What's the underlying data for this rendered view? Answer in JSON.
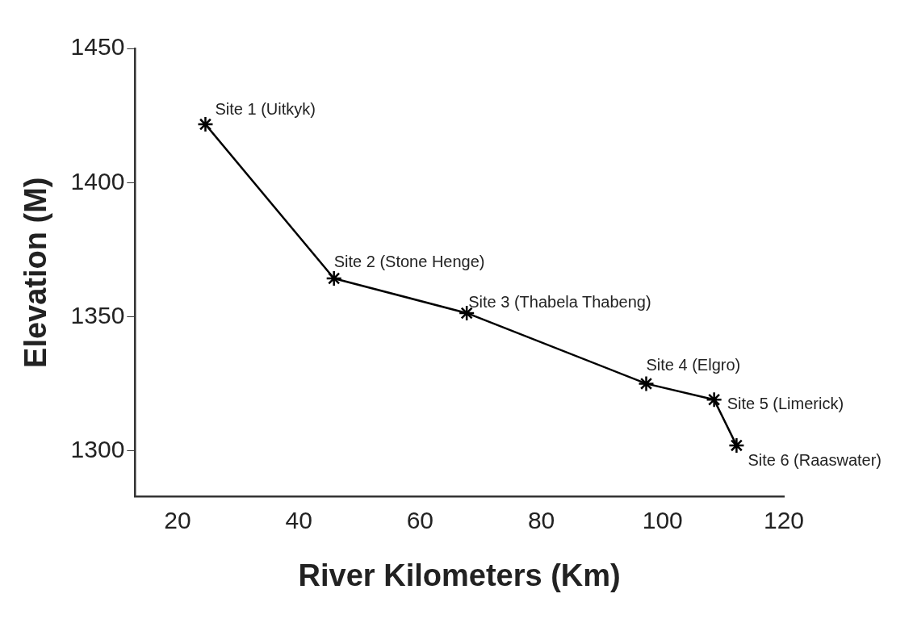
{
  "chart_data": {
    "type": "line",
    "xlabel": "River Kilometers (Km)",
    "ylabel": "Elevation (M)",
    "x": [
      24.6,
      45.8,
      67.7,
      97.3,
      108.5,
      112.2
    ],
    "series": [
      {
        "color": "#000000",
        "values": [
          1421.7,
          1364.3,
          1351.4,
          1325.1,
          1319.1,
          1302.1
        ]
      }
    ],
    "xlim": [
      13,
      120
    ],
    "xticks": [
      20,
      40,
      60,
      80,
      100,
      120
    ],
    "ylim": [
      1283,
      1450
    ],
    "yticks": [
      1300,
      1350,
      1400,
      1450
    ],
    "marker": "cross",
    "line_style": "solid",
    "grid": false,
    "legend": false,
    "annotations": [
      {
        "text": "Site 1 (Uitkyk)",
        "x": 24.6,
        "y": 1421.7
      },
      {
        "text": "Site 2 (Stone Henge)",
        "x": 45.8,
        "y": 1364.3
      },
      {
        "text": "Site 3 (Thabela Thabeng)",
        "x": 67.7,
        "y": 1351.4
      },
      {
        "text": "Site 4 (Elgro)",
        "x": 97.3,
        "y": 1325.1
      },
      {
        "text": "Site 5 (Limerick)",
        "x": 108.5,
        "y": 1319.1
      },
      {
        "text": "Site 6 (Raaswater)",
        "x": 112.2,
        "y": 1302.1
      }
    ]
  }
}
